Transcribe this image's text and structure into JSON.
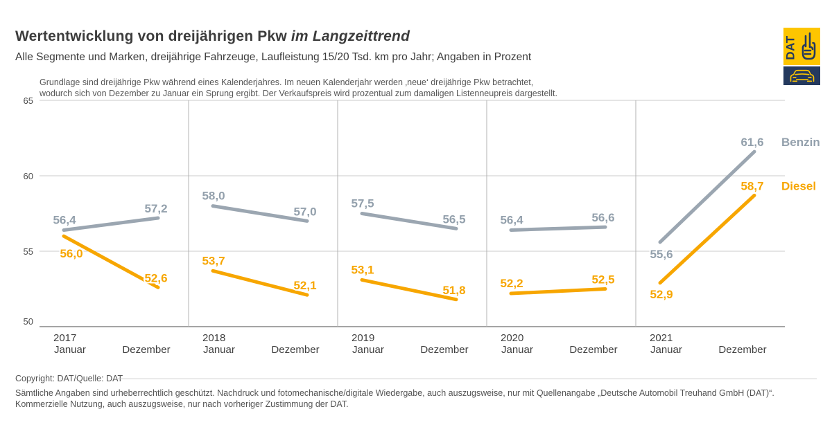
{
  "header": {
    "title_main": "Wertentwicklung von dreijährigen Pkw",
    "title_italic": "im Langzeittrend",
    "subtitle": "Alle Segmente und Marken, dreijährige Fahrzeuge, Laufleistung 15/20 Tsd. km pro Jahr; Angaben in Prozent"
  },
  "note": {
    "line1": "Grundlage sind dreijährige Pkw während eines Kalenderjahres. Im neuen Kalenderjahr werden ‚neue‘ dreijährige Pkw betrachtet,",
    "line2": "wodurch sich von Dezember zu Januar ein Sprung ergibt. Der Verkaufspreis wird prozentual zum damaligen Listenneupreis dargestellt."
  },
  "logo": {
    "text": "DAT",
    "yellow": "#fdc500",
    "navy": "#24395e"
  },
  "chart_data": {
    "type": "line",
    "ylim": [
      50,
      65
    ],
    "yticks": [
      50,
      55,
      60,
      65
    ],
    "grid": true,
    "legend_position": "right",
    "x_sublabels": [
      "Januar",
      "Dezember"
    ],
    "series": [
      {
        "name": "Benzin",
        "color": "#9ba6b1",
        "label_color": "#93a0ac"
      },
      {
        "name": "Diesel",
        "color": "#f7a600",
        "label_color": "#f7a600"
      }
    ],
    "panels": [
      {
        "year": "2017",
        "values": {
          "Benzin": [
            56.4,
            57.2
          ],
          "Diesel": [
            56.0,
            52.6
          ]
        }
      },
      {
        "year": "2018",
        "values": {
          "Benzin": [
            58.0,
            57.0
          ],
          "Diesel": [
            53.7,
            52.1
          ]
        }
      },
      {
        "year": "2019",
        "values": {
          "Benzin": [
            57.5,
            56.5
          ],
          "Diesel": [
            53.1,
            51.8
          ]
        }
      },
      {
        "year": "2020",
        "values": {
          "Benzin": [
            56.4,
            56.6
          ],
          "Diesel": [
            52.2,
            52.5
          ]
        }
      },
      {
        "year": "2021",
        "values": {
          "Benzin": [
            55.6,
            61.6
          ],
          "Diesel": [
            52.9,
            58.7
          ]
        }
      }
    ]
  },
  "footer": {
    "copyright": "Copyright: DAT/Quelle: DAT",
    "line1": "Sämtliche Angaben sind urheberrechtlich geschützt. Nachdruck und fotomechanische/digitale Wiedergabe, auch auszugsweise, nur mit Quellenangabe „Deutsche Automobil Treuhand GmbH (DAT)“.",
    "line2": "Kommerzielle Nutzung, auch auszugsweise, nur nach vorheriger Zustimmung der DAT."
  }
}
